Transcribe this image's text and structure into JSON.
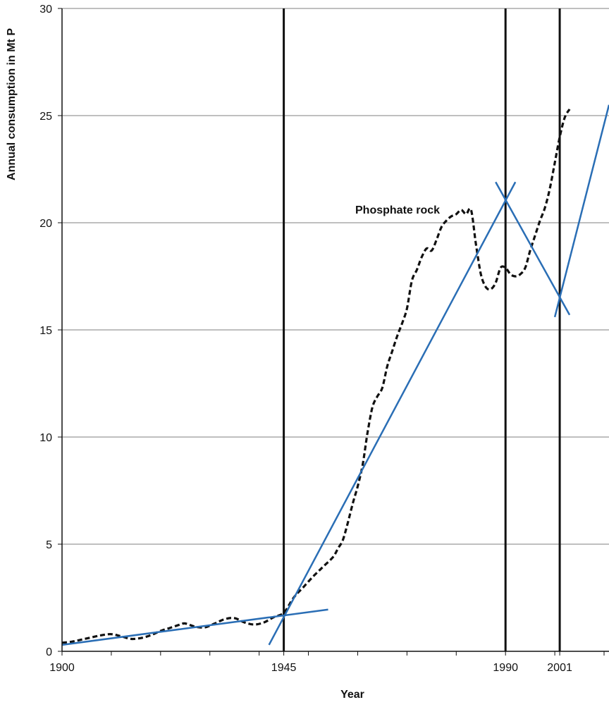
{
  "chart_data": {
    "type": "line",
    "xlabel": "Year",
    "ylabel": "Annual consumption in Mt P",
    "xlim": [
      1900,
      2011
    ],
    "ylim": [
      0,
      30
    ],
    "x_tick_labels": [
      "1900",
      "1945",
      "1990",
      "2001"
    ],
    "x_ticks": [
      1900,
      1945,
      1990,
      2001
    ],
    "x_minor_ticks": [
      1910,
      1920,
      1930,
      1940,
      1950,
      1960,
      1970,
      1980,
      2000,
      2010
    ],
    "y_ticks": [
      0,
      5,
      10,
      15,
      20,
      25,
      30
    ],
    "grid": "horizontal",
    "annotations": [
      {
        "text": "Phosphate rock",
        "x": 1978,
        "y": 20.5
      }
    ],
    "vertical_markers": [
      1945,
      1990,
      2001
    ],
    "series": [
      {
        "style": "dashed",
        "color": "#111111",
        "points": [
          [
            1900,
            0.4
          ],
          [
            1902,
            0.45
          ],
          [
            1904,
            0.55
          ],
          [
            1906,
            0.65
          ],
          [
            1908,
            0.75
          ],
          [
            1910,
            0.8
          ],
          [
            1912,
            0.7
          ],
          [
            1914,
            0.58
          ],
          [
            1916,
            0.62
          ],
          [
            1918,
            0.75
          ],
          [
            1920,
            0.95
          ],
          [
            1922,
            1.1
          ],
          [
            1924,
            1.25
          ],
          [
            1925,
            1.3
          ],
          [
            1927,
            1.15
          ],
          [
            1929,
            1.12
          ],
          [
            1931,
            1.3
          ],
          [
            1933,
            1.5
          ],
          [
            1935,
            1.55
          ],
          [
            1937,
            1.35
          ],
          [
            1939,
            1.25
          ],
          [
            1941,
            1.35
          ],
          [
            1943,
            1.6
          ],
          [
            1945,
            1.8
          ],
          [
            1947,
            2.5
          ],
          [
            1949,
            3.0
          ],
          [
            1951,
            3.5
          ],
          [
            1953,
            3.95
          ],
          [
            1955,
            4.4
          ],
          [
            1956,
            4.8
          ],
          [
            1957,
            5.2
          ],
          [
            1958,
            6.0
          ],
          [
            1959,
            6.9
          ],
          [
            1960,
            7.7
          ],
          [
            1961,
            8.7
          ],
          [
            1962,
            10.2
          ],
          [
            1963,
            11.4
          ],
          [
            1964,
            11.9
          ],
          [
            1965,
            12.3
          ],
          [
            1966,
            13.3
          ],
          [
            1967,
            14.0
          ],
          [
            1968,
            14.7
          ],
          [
            1969,
            15.3
          ],
          [
            1970,
            16.0
          ],
          [
            1971,
            17.3
          ],
          [
            1972,
            17.8
          ],
          [
            1973,
            18.4
          ],
          [
            1974,
            18.8
          ],
          [
            1975,
            18.7
          ],
          [
            1976,
            19.2
          ],
          [
            1977,
            19.8
          ],
          [
            1978,
            20.1
          ],
          [
            1979,
            20.3
          ],
          [
            1980,
            20.4
          ],
          [
            1981,
            20.6
          ],
          [
            1982,
            20.4
          ],
          [
            1983,
            20.6
          ],
          [
            1984,
            19.0
          ],
          [
            1985,
            17.6
          ],
          [
            1986,
            17.0
          ],
          [
            1987,
            16.9
          ],
          [
            1988,
            17.2
          ],
          [
            1989,
            17.9
          ],
          [
            1990,
            17.9
          ],
          [
            1991,
            17.6
          ],
          [
            1992,
            17.5
          ],
          [
            1993,
            17.6
          ],
          [
            1994,
            17.9
          ],
          [
            1995,
            18.7
          ],
          [
            1996,
            19.4
          ],
          [
            1997,
            20.1
          ],
          [
            1998,
            20.7
          ],
          [
            1999,
            21.6
          ],
          [
            2000,
            22.8
          ],
          [
            2001,
            24.0
          ],
          [
            2002,
            24.9
          ],
          [
            2003,
            25.3
          ]
        ]
      }
    ],
    "trend_lines": [
      {
        "color": "#2a6eb5",
        "x1": 1900,
        "y1": 0.3,
        "x2": 1954,
        "y2": 1.95
      },
      {
        "color": "#2a6eb5",
        "x1": 1942,
        "y1": 0.3,
        "x2": 1992,
        "y2": 21.9
      },
      {
        "color": "#2a6eb5",
        "x1": 1988,
        "y1": 21.9,
        "x2": 2003,
        "y2": 15.7
      },
      {
        "color": "#2a6eb5",
        "x1": 2000,
        "y1": 15.6,
        "x2": 2011,
        "y2": 25.5
      }
    ]
  }
}
